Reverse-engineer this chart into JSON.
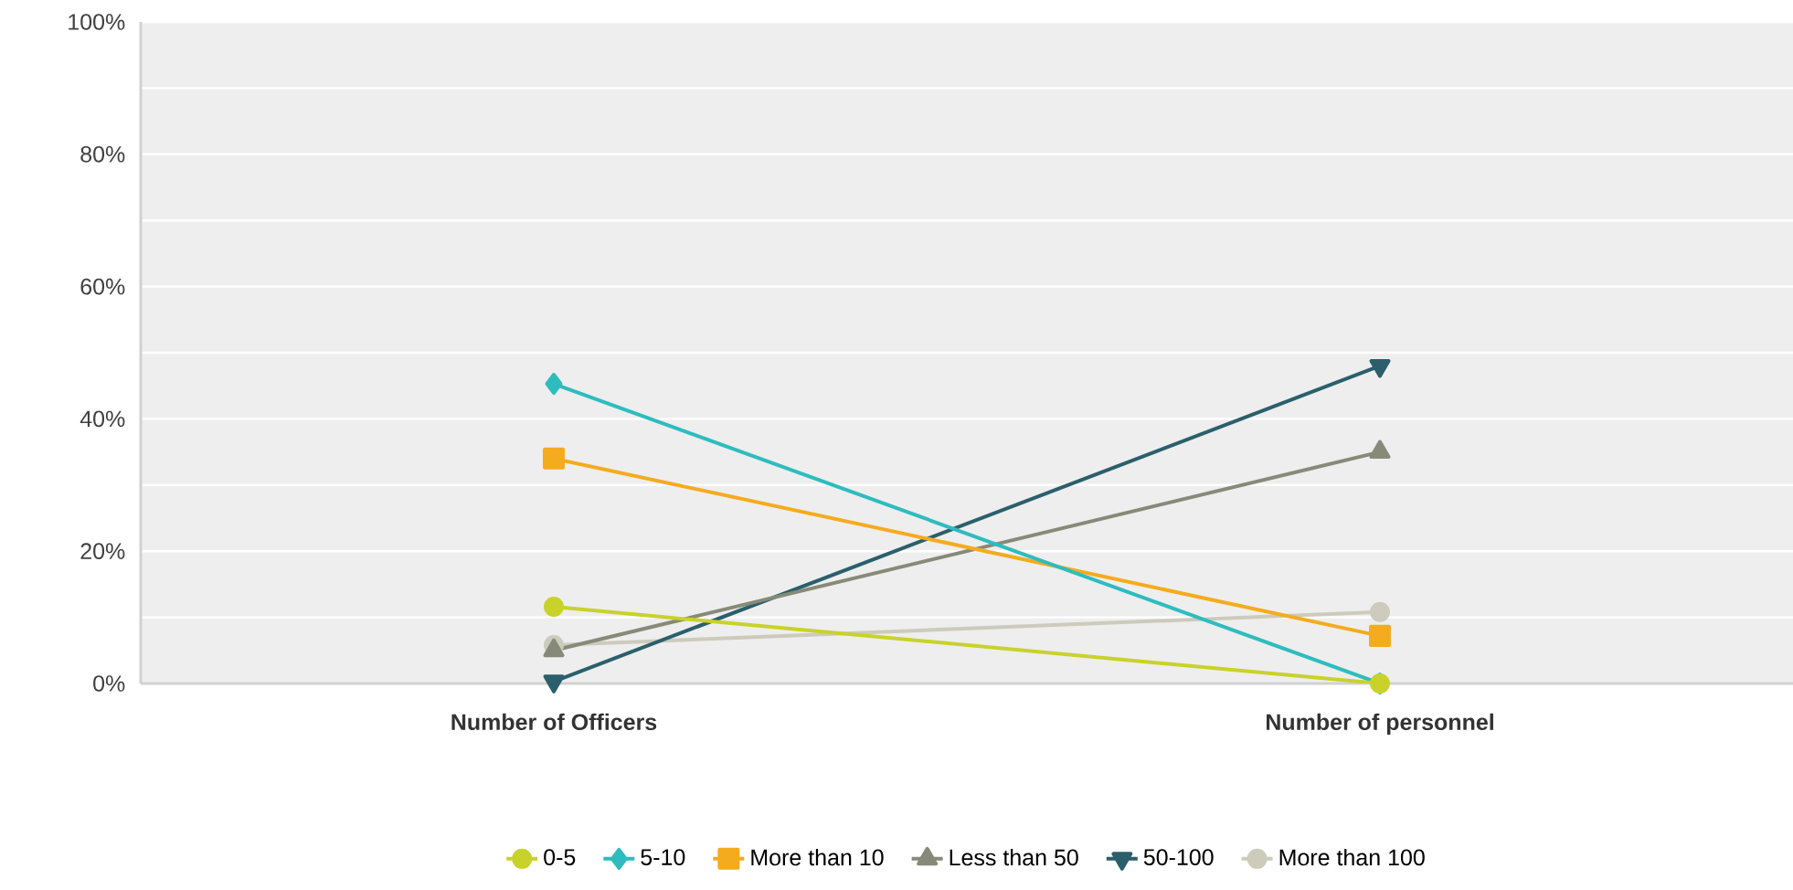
{
  "chart_data": {
    "type": "line",
    "categories": [
      "Number of Officers",
      "Number of personnel"
    ],
    "series": [
      {
        "name": "0-5",
        "color": "#c9d22a",
        "marker": "circle",
        "values": [
          11.6,
          0
        ]
      },
      {
        "name": "5-10",
        "color": "#2ebcbf",
        "marker": "diamond",
        "values": [
          45.3,
          0
        ]
      },
      {
        "name": "More than 10",
        "color": "#f5ab1e",
        "marker": "square",
        "values": [
          34,
          7.2
        ]
      },
      {
        "name": "Less than 50",
        "color": "#878a78",
        "marker": "triangle",
        "values": [
          5,
          35
        ]
      },
      {
        "name": "50-100",
        "color": "#2b5f6c",
        "marker": "triangle-down",
        "values": [
          0.3,
          48
        ]
      },
      {
        "name": "More than 100",
        "color": "#cccbbc",
        "marker": "circle",
        "values": [
          5.8,
          10.8
        ]
      }
    ],
    "ylim": [
      0,
      100
    ],
    "yticks": [
      {
        "value": 0,
        "label": "0%"
      },
      {
        "value": 10,
        "label": null
      },
      {
        "value": 20,
        "label": "20%"
      },
      {
        "value": 30,
        "label": null
      },
      {
        "value": 40,
        "label": "40%"
      },
      {
        "value": 50,
        "label": null
      },
      {
        "value": 60,
        "label": "60%"
      },
      {
        "value": 70,
        "label": null
      },
      {
        "value": 80,
        "label": "80%"
      },
      {
        "value": 90,
        "label": null
      },
      {
        "value": 100,
        "label": "100%"
      }
    ],
    "grid": "y",
    "legend": "bottom",
    "line_style": "solid"
  }
}
